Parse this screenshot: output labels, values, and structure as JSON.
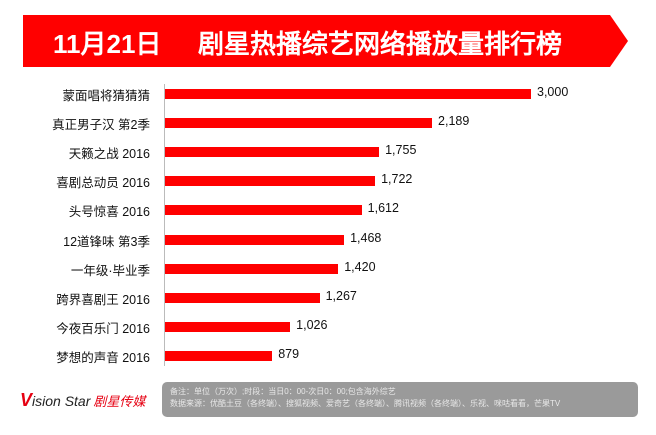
{
  "header": {
    "date": "11月21日",
    "title": "剧星热播综艺网络播放量排行榜",
    "color": "#ff0000"
  },
  "chart_data": {
    "type": "bar",
    "orientation": "horizontal",
    "title": "11月21日 剧星热播综艺网络播放量排行榜",
    "categories": [
      "蒙面唱将猜猜猜",
      "真正男子汉 第2季",
      "天籁之战 2016",
      "喜剧总动员 2016",
      "头号惊喜 2016",
      "12道锋味 第3季",
      "一年级·毕业季",
      "跨界喜剧王 2016",
      "今夜百乐门 2016",
      "梦想的声音 2016"
    ],
    "values": [
      3000,
      2189,
      1755,
      1722,
      1612,
      1468,
      1420,
      1267,
      1026,
      879
    ],
    "value_labels": [
      "3,000",
      "2,189",
      "1,755",
      "1,722",
      "1,612",
      "1,468",
      "1,420",
      "1,267",
      "1,026",
      "879"
    ],
    "xlim": [
      0,
      3000
    ],
    "unit": "万次",
    "bar_color": "#ff0000"
  },
  "note": {
    "line1": "备注：单位（万次）;时段：当日0：00-次日0：00;包含海外综艺",
    "line2": "数据来源：优酷土豆（各终端）、搜狐视频、爱奇艺（各终端）、腾讯视频（各终端）、乐视、咪咕看看，芒果TV"
  },
  "logo": {
    "v": "V",
    "en": "ision Star",
    "cn": "剧星传媒"
  }
}
